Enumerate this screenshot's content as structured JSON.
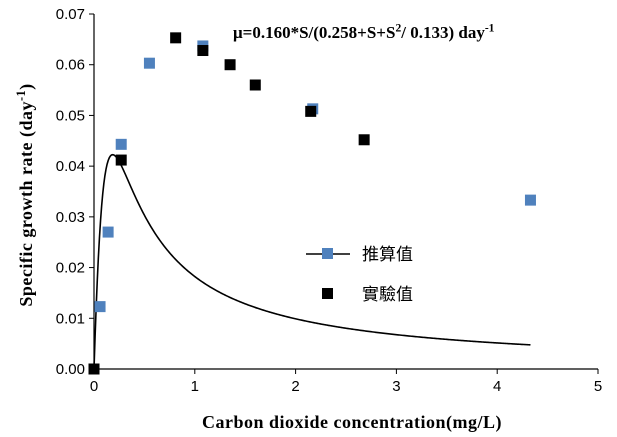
{
  "chart_data": {
    "type": "scatter",
    "xlabel": "Carbon dioxide concentration(mg/L)",
    "ylabel": "Specific growth rate (day⁻¹)",
    "equation": "μ=0.160*S/(0.258+S+S²/ 0.133) day⁻¹",
    "xlim": [
      0,
      5
    ],
    "ylim": [
      0,
      0.07
    ],
    "x_ticks": [
      "0",
      "1",
      "2",
      "3",
      "4",
      "5"
    ],
    "y_ticks": [
      "0.00",
      "0.01",
      "0.02",
      "0.03",
      "0.04",
      "0.05",
      "0.06",
      "0.07"
    ],
    "model": {
      "mu_max": 0.16,
      "ks": 0.258,
      "ki": 0.133
    },
    "legend_position": "right-middle",
    "series": [
      {
        "name": "推算值",
        "style": "line-with-square-markers",
        "color": "#4f81bd",
        "line_color": "#000000",
        "x": [
          0.0,
          0.06,
          0.14,
          0.27,
          0.55,
          1.08,
          2.17,
          4.33
        ],
        "y": [
          0.0,
          0.0123,
          0.027,
          0.0443,
          0.0603,
          0.0637,
          0.0513,
          0.0333
        ]
      },
      {
        "name": "實驗值",
        "style": "square-markers",
        "color": "#000000",
        "x": [
          0.0,
          0.27,
          0.81,
          1.08,
          1.35,
          1.6,
          2.15,
          2.68
        ],
        "y": [
          0.0,
          0.0412,
          0.0653,
          0.0628,
          0.06,
          0.056,
          0.0508,
          0.0452
        ]
      }
    ]
  }
}
